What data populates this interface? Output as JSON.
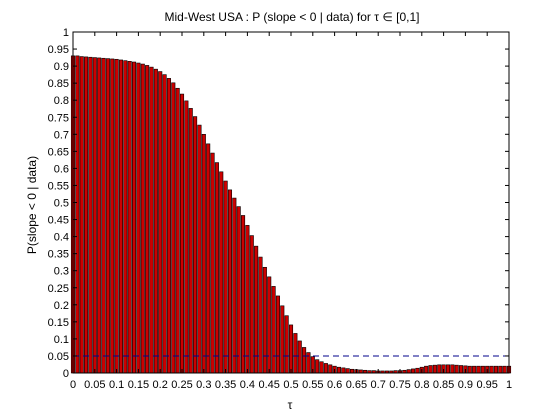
{
  "chart_data": {
    "type": "bar",
    "title": "Mid-West USA : P (slope < 0 | data) for τ ∈ [0,1]",
    "xlabel": "τ",
    "ylabel": "P(slope < 0 | data)",
    "xlim": [
      0,
      1
    ],
    "ylim": [
      0,
      1
    ],
    "bar_color": "#cc0000",
    "bar_edge_color": "#000000",
    "threshold": {
      "y": 0.05,
      "color": "#00008b",
      "style": "dashed"
    },
    "x_tick_labels": [
      "0",
      "0.05",
      "0.1",
      "0.15",
      "0.2",
      "0.25",
      "0.3",
      "0.35",
      "0.4",
      "0.45",
      "0.5",
      "0.55",
      "0.6",
      "0.65",
      "0.7",
      "0.75",
      "0.8",
      "0.85",
      "0.9",
      "0.95",
      "1"
    ],
    "y_tick_labels": [
      "0",
      "0.05",
      "0.1",
      "0.15",
      "0.2",
      "0.25",
      "0.3",
      "0.35",
      "0.4",
      "0.45",
      "0.5",
      "0.55",
      "0.6",
      "0.65",
      "0.7",
      "0.75",
      "0.8",
      "0.85",
      "0.9",
      "0.95",
      "1"
    ],
    "x_ticks": [
      0,
      0.05,
      0.1,
      0.15,
      0.2,
      0.25,
      0.3,
      0.35,
      0.4,
      0.45,
      0.5,
      0.55,
      0.6,
      0.65,
      0.7,
      0.75,
      0.8,
      0.85,
      0.9,
      0.95,
      1
    ],
    "y_ticks": [
      0,
      0.05,
      0.1,
      0.15,
      0.2,
      0.25,
      0.3,
      0.35,
      0.4,
      0.45,
      0.5,
      0.55,
      0.6,
      0.65,
      0.7,
      0.75,
      0.8,
      0.85,
      0.9,
      0.95,
      1
    ],
    "x": [
      0,
      0.01,
      0.02,
      0.03,
      0.04,
      0.05,
      0.06,
      0.07,
      0.08,
      0.09,
      0.1,
      0.11,
      0.12,
      0.13,
      0.14,
      0.15,
      0.16,
      0.17,
      0.18,
      0.19,
      0.2,
      0.21,
      0.22,
      0.23,
      0.24,
      0.25,
      0.26,
      0.27,
      0.28,
      0.29,
      0.3,
      0.31,
      0.32,
      0.33,
      0.34,
      0.35,
      0.36,
      0.37,
      0.38,
      0.39,
      0.4,
      0.41,
      0.42,
      0.43,
      0.44,
      0.45,
      0.46,
      0.47,
      0.48,
      0.49,
      0.5,
      0.51,
      0.52,
      0.53,
      0.54,
      0.55,
      0.56,
      0.57,
      0.58,
      0.59,
      0.6,
      0.61,
      0.62,
      0.63,
      0.64,
      0.65,
      0.66,
      0.67,
      0.68,
      0.69,
      0.7,
      0.71,
      0.72,
      0.73,
      0.74,
      0.75,
      0.76,
      0.77,
      0.78,
      0.79,
      0.8,
      0.81,
      0.82,
      0.83,
      0.84,
      0.85,
      0.86,
      0.87,
      0.88,
      0.89,
      0.9,
      0.91,
      0.92,
      0.93,
      0.94,
      0.95,
      0.96,
      0.97,
      0.98,
      0.99,
      1
    ],
    "values": [
      0.93,
      0.93,
      0.928,
      0.927,
      0.926,
      0.925,
      0.924,
      0.923,
      0.922,
      0.921,
      0.92,
      0.918,
      0.916,
      0.914,
      0.912,
      0.909,
      0.906,
      0.902,
      0.897,
      0.891,
      0.884,
      0.875,
      0.864,
      0.851,
      0.835,
      0.818,
      0.798,
      0.776,
      0.752,
      0.727,
      0.7,
      0.672,
      0.645,
      0.617,
      0.59,
      0.563,
      0.537,
      0.513,
      0.488,
      0.462,
      0.433,
      0.403,
      0.372,
      0.34,
      0.31,
      0.282,
      0.254,
      0.226,
      0.197,
      0.168,
      0.141,
      0.116,
      0.094,
      0.075,
      0.06,
      0.048,
      0.039,
      0.033,
      0.028,
      0.024,
      0.02,
      0.017,
      0.015,
      0.013,
      0.011,
      0.01,
      0.009,
      0.008,
      0.007,
      0.007,
      0.006,
      0.006,
      0.006,
      0.006,
      0.007,
      0.007,
      0.008,
      0.01,
      0.012,
      0.014,
      0.017,
      0.02,
      0.022,
      0.023,
      0.024,
      0.024,
      0.024,
      0.024,
      0.023,
      0.022,
      0.021,
      0.02,
      0.02,
      0.02,
      0.02,
      0.02,
      0.02,
      0.02,
      0.02,
      0.02,
      0.02
    ]
  }
}
